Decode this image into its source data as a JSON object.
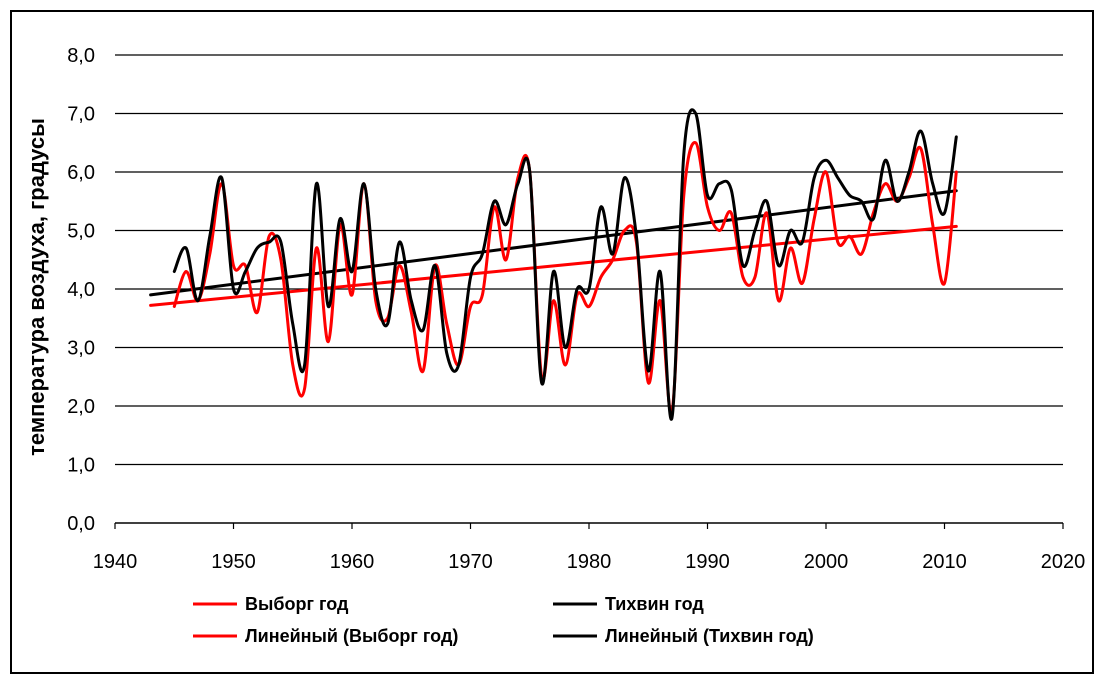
{
  "chart_data": {
    "type": "line",
    "xlim": [
      1940,
      2020
    ],
    "ylim": [
      0,
      8
    ],
    "x_ticks": [
      1940,
      1950,
      1960,
      1970,
      1980,
      1990,
      2000,
      2010,
      2020
    ],
    "x_tick_labels": [
      "1940",
      "1950",
      "1960",
      "1970",
      "1980",
      "1990",
      "2000",
      "2010",
      "2020"
    ],
    "y_ticks": [
      0,
      1,
      2,
      3,
      4,
      5,
      6,
      7,
      8
    ],
    "y_tick_labels": [
      "0,0",
      "1,0",
      "2,0",
      "3,0",
      "4,0",
      "5,0",
      "6,0",
      "7,0",
      "8,0"
    ],
    "ylabel": "температура воздуха, градусы",
    "xlabel": "",
    "grid": "horizontal",
    "legend_position": "bottom",
    "series": [
      {
        "name": "Выборг год",
        "color": "#ff0000",
        "style": "smooth",
        "x": [
          1945,
          1946,
          1947,
          1948,
          1949,
          1950,
          1951,
          1952,
          1953,
          1954,
          1955,
          1956,
          1957,
          1958,
          1959,
          1960,
          1961,
          1962,
          1963,
          1964,
          1965,
          1966,
          1967,
          1968,
          1969,
          1970,
          1971,
          1972,
          1973,
          1974,
          1975,
          1976,
          1977,
          1978,
          1979,
          1980,
          1981,
          1982,
          1983,
          1984,
          1985,
          1986,
          1987,
          1988,
          1989,
          1990,
          1991,
          1992,
          1993,
          1994,
          1995,
          1996,
          1997,
          1998,
          1999,
          2000,
          2001,
          2002,
          2003,
          2004,
          2005,
          2006,
          2007,
          2008,
          2009,
          2010,
          2011
        ],
        "y": [
          3.7,
          4.3,
          3.8,
          4.6,
          5.8,
          4.4,
          4.4,
          3.6,
          4.9,
          4.5,
          2.7,
          2.3,
          4.7,
          3.1,
          5.1,
          3.9,
          5.8,
          3.8,
          3.5,
          4.4,
          3.6,
          2.6,
          4.4,
          3.4,
          2.7,
          3.7,
          3.9,
          5.4,
          4.5,
          5.9,
          6.0,
          2.5,
          3.8,
          2.7,
          3.9,
          3.7,
          4.2,
          4.5,
          5.0,
          4.8,
          2.4,
          3.8,
          1.9,
          5.6,
          6.5,
          5.4,
          5.0,
          5.3,
          4.2,
          4.2,
          5.3,
          3.8,
          4.7,
          4.1,
          5.2,
          6.0,
          4.8,
          4.9,
          4.6,
          5.3,
          5.8,
          5.5,
          5.9,
          6.4,
          5.1,
          4.1,
          6.0
        ]
      },
      {
        "name": "Тихвин год",
        "color": "#000000",
        "style": "smooth",
        "x": [
          1945,
          1946,
          1947,
          1948,
          1949,
          1950,
          1951,
          1952,
          1953,
          1954,
          1955,
          1956,
          1957,
          1958,
          1959,
          1960,
          1961,
          1962,
          1963,
          1964,
          1965,
          1966,
          1967,
          1968,
          1969,
          1970,
          1971,
          1972,
          1973,
          1974,
          1975,
          1976,
          1977,
          1978,
          1979,
          1980,
          1981,
          1982,
          1983,
          1984,
          1985,
          1986,
          1987,
          1988,
          1989,
          1990,
          1991,
          1992,
          1993,
          1994,
          1995,
          1996,
          1997,
          1998,
          1999,
          2000,
          2001,
          2002,
          2003,
          2004,
          2005,
          2006,
          2007,
          2008,
          2009,
          2010,
          2011
        ],
        "y": [
          4.3,
          4.7,
          3.8,
          4.9,
          5.9,
          4.0,
          4.3,
          4.7,
          4.8,
          4.8,
          3.4,
          2.7,
          5.8,
          3.7,
          5.2,
          4.3,
          5.8,
          4.0,
          3.4,
          4.8,
          3.8,
          3.3,
          4.4,
          2.9,
          2.7,
          4.2,
          4.6,
          5.5,
          5.1,
          5.8,
          6.0,
          2.4,
          4.3,
          3.0,
          4.0,
          4.0,
          5.4,
          4.6,
          5.9,
          4.9,
          2.6,
          4.3,
          1.8,
          6.3,
          7.0,
          5.6,
          5.8,
          5.7,
          4.4,
          5.0,
          5.5,
          4.4,
          5.0,
          4.8,
          5.9,
          6.2,
          5.9,
          5.6,
          5.5,
          5.2,
          6.2,
          5.5,
          6.0,
          6.7,
          5.8,
          5.3,
          6.6
        ]
      },
      {
        "name": "Линейный (Выборг год)",
        "color": "#ff0000",
        "style": "straight",
        "x": [
          1943,
          2011
        ],
        "y": [
          3.72,
          5.07
        ]
      },
      {
        "name": "Линейный (Тихвин год)",
        "color": "#000000",
        "style": "straight",
        "x": [
          1943,
          2011
        ],
        "y": [
          3.9,
          5.68
        ]
      }
    ]
  }
}
